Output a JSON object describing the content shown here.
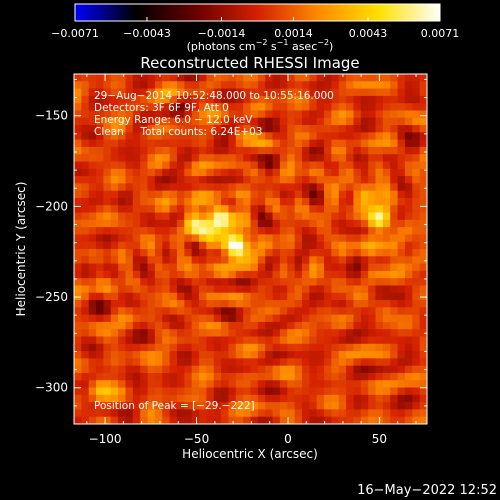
{
  "chart_data": {
    "type": "heatmap",
    "title": "Reconstructed RHESSI Image",
    "xlabel": "Heliocentric X (arcsec)",
    "ylabel": "Heliocentric Y (arcsec)",
    "xlim": [
      -117,
      76
    ],
    "ylim": [
      -320,
      -127
    ],
    "xticks": [
      -100,
      -50,
      0,
      50
    ],
    "xtick_labels": [
      "−100",
      "−50",
      "0",
      "50"
    ],
    "yticks": [
      -150,
      -200,
      -250,
      -300
    ],
    "ytick_labels": [
      "−150",
      "−200",
      "−250",
      "−300"
    ],
    "colorbar": {
      "min": -0.0071,
      "max": 0.0071,
      "ticks": [
        -0.0071,
        -0.0043,
        -0.0014,
        0.0014,
        0.0043,
        0.0071
      ],
      "tick_labels": [
        "−0.0071",
        "−0.0043",
        "−0.0014",
        "0.0014",
        "0.0043",
        "0.0071"
      ],
      "unit_label": {
        "open": "(photons cm",
        "sup1": "−2",
        "mid1": " s",
        "sup2": "−1",
        "mid2": " asec",
        "sup3": "−2",
        "close": ")"
      },
      "colormap": [
        "#0000ff",
        "#000000",
        "#6a0000",
        "#d42000",
        "#ff8a00",
        "#ffe000",
        "#ffffff"
      ]
    },
    "annotations": [
      "29−Aug−2014 10:52:48.000 to 10:55:16.000",
      "Detectors: 3F 6F 9F, Att 0",
      "Energy Range: 6.0 − 12.0 keV",
      "Clean     Total counts: 6.24E+03"
    ],
    "peak_label": "Position of Peak = [−29.−222]",
    "peak": [
      -29,
      -222
    ],
    "sources": [
      {
        "x": -29,
        "y": -222,
        "amp": 0.0071
      },
      {
        "x": -38,
        "y": -205,
        "amp": 0.0048
      },
      {
        "x": -49,
        "y": -210,
        "amp": 0.004
      },
      {
        "x": 50,
        "y": -207,
        "amp": 0.0042
      },
      {
        "x": 42,
        "y": -193,
        "amp": 0.0025
      },
      {
        "x": 58,
        "y": -226,
        "amp": 0.0022
      },
      {
        "x": -104,
        "y": -302,
        "amp": 0.0018
      }
    ]
  },
  "footer": {
    "timestamp": "16−May−2022 12:52"
  }
}
